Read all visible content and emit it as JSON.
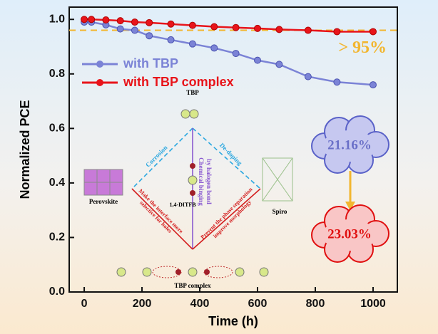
{
  "chart_data": {
    "type": "line",
    "xlabel": "Time (h)",
    "ylabel": "Normalized PCE",
    "xlim": [
      -52,
      1084
    ],
    "ylim": [
      0,
      1.045
    ],
    "xticks": [
      0,
      200,
      400,
      600,
      800,
      1000
    ],
    "yticks": [
      {
        "value": 0,
        "label": "0.0"
      },
      {
        "value": 0.2,
        "label": "0.2"
      },
      {
        "value": 0.4,
        "label": "0.4"
      },
      {
        "value": 0.6,
        "label": "0.6"
      },
      {
        "value": 0.8,
        "label": "0.8"
      },
      {
        "value": 1,
        "label": "1.0"
      }
    ],
    "x": [
      0,
      25,
      75,
      125,
      175,
      225,
      300,
      375,
      450,
      525,
      600,
      675,
      775,
      875,
      1000
    ],
    "series": [
      {
        "name": "with TBP",
        "color": "#7b83d6",
        "values": [
          0.99,
          0.99,
          0.98,
          0.965,
          0.96,
          0.94,
          0.925,
          0.91,
          0.895,
          0.875,
          0.85,
          0.835,
          0.79,
          0.77,
          0.76
        ]
      },
      {
        "name": "with TBP complex",
        "color": "#e8141a",
        "values": [
          1.0,
          1.0,
          0.998,
          0.995,
          0.99,
          0.988,
          0.983,
          0.978,
          0.973,
          0.97,
          0.967,
          0.963,
          0.96,
          0.955,
          0.955
        ]
      }
    ],
    "reference_line": 0.96,
    "reference_color": "#f2b630",
    "reference_label": "> 95%",
    "legend": "upper left",
    "cloud_labels": [
      "21.16%",
      "23.03%"
    ],
    "inset_labels": {
      "top": "TBP",
      "left_edge": "Corrosion",
      "right_edge": "De-doping",
      "middle": [
        "Chemical binging",
        "by halogen bond"
      ],
      "center": "1,4-DITFB",
      "left": "Perovskite",
      "right": "Spiro",
      "lower_left": [
        "Make the interface more",
        "selective for holes"
      ],
      "lower_right": [
        "Prevent the phase separation",
        "improve morphology"
      ],
      "bottom": "TBP complex"
    }
  }
}
